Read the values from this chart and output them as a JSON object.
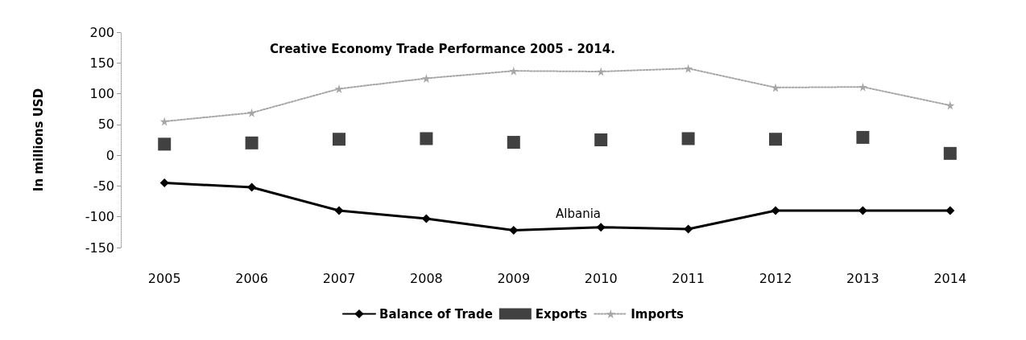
{
  "chart_data": {
    "type": "line",
    "title": "Creative Economy Trade Performance 2005 - 2014.",
    "ylabel": "In millions USD",
    "annotations": [
      "Albania"
    ],
    "categories": [
      "2005",
      "2006",
      "2007",
      "2008",
      "2009",
      "2010",
      "2011",
      "2012",
      "2013",
      "2014"
    ],
    "series": [
      {
        "name": "Balance of Trade",
        "color": "#000000",
        "marker": "diamond",
        "line_style": "solid",
        "values": [
          -45,
          -52,
          -90,
          -103,
          -122,
          -117,
          -120,
          -90,
          -90,
          -90
        ]
      },
      {
        "name": "Exports",
        "type": "scatter",
        "color": "#111111",
        "marker": "square",
        "values": [
          18,
          20,
          26,
          27,
          21,
          25,
          27,
          26,
          29,
          3
        ]
      },
      {
        "name": "Imports",
        "color": "#a6a6a6",
        "marker": "star",
        "line_style": "dotted",
        "values": [
          55,
          69,
          108,
          125,
          137,
          136,
          141,
          110,
          111,
          81
        ]
      }
    ],
    "ylim": [
      -150,
      200
    ],
    "yticks": [
      -150,
      -100,
      -50,
      0,
      50,
      100,
      150,
      200
    ],
    "grid": false,
    "legend": "bottom"
  }
}
